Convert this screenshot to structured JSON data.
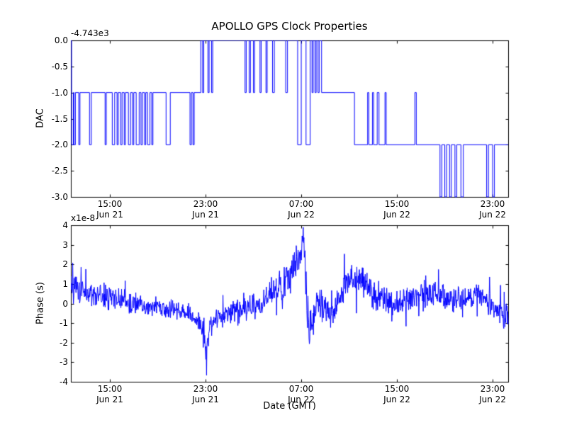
{
  "figure": {
    "title": "APOLLO GPS Clock Properties",
    "background": "#ffffff",
    "line_color": "#0000ff"
  },
  "chart_data": [
    {
      "type": "line",
      "name": "dac-subplot",
      "title": "APOLLO GPS Clock Properties",
      "ylabel": "DAC",
      "y_offset_label": "-4.743e3",
      "drawstyle": "steps-post",
      "grid": false,
      "legend": "none",
      "xlim": [
        11.74,
        48.3
      ],
      "ylim": [
        -3.0,
        0.0
      ],
      "x_unit": "hours since Jun 21 00:00 GMT",
      "yticks": [
        {
          "value": 0.0,
          "label": "0.0"
        },
        {
          "value": -0.5,
          "label": "-0.5"
        },
        {
          "value": -1.0,
          "label": "-1.0"
        },
        {
          "value": -1.5,
          "label": "-1.5"
        },
        {
          "value": -2.0,
          "label": "-2.0"
        },
        {
          "value": -2.5,
          "label": "-2.5"
        },
        {
          "value": -3.0,
          "label": "-3.0"
        }
      ],
      "xticks": [
        {
          "value": 15,
          "time": "15:00",
          "date": "Jun 21"
        },
        {
          "value": 23,
          "time": "23:00",
          "date": "Jun 21"
        },
        {
          "value": 31,
          "time": "07:00",
          "date": "Jun 22"
        },
        {
          "value": 39,
          "time": "15:00",
          "date": "Jun 22"
        },
        {
          "value": 47,
          "time": "23:00",
          "date": "Jun 22"
        }
      ],
      "steps": [
        [
          11.74,
          0
        ],
        [
          11.8,
          -2
        ],
        [
          11.95,
          -1
        ],
        [
          12.0,
          -2
        ],
        [
          12.12,
          -1
        ],
        [
          12.4,
          -2
        ],
        [
          12.5,
          -1
        ],
        [
          13.3,
          -2
        ],
        [
          13.45,
          -1
        ],
        [
          14.6,
          -2
        ],
        [
          14.7,
          -1
        ],
        [
          15.2,
          -2
        ],
        [
          15.4,
          -1
        ],
        [
          15.6,
          -2
        ],
        [
          15.7,
          -1
        ],
        [
          15.9,
          -2
        ],
        [
          16.02,
          -1
        ],
        [
          16.2,
          -2
        ],
        [
          16.3,
          -1
        ],
        [
          16.55,
          -2
        ],
        [
          16.73,
          -1
        ],
        [
          16.9,
          -2
        ],
        [
          17.0,
          -1
        ],
        [
          17.2,
          -2
        ],
        [
          17.45,
          -1
        ],
        [
          17.6,
          -2
        ],
        [
          17.72,
          -1
        ],
        [
          17.9,
          -2
        ],
        [
          18.0,
          -1
        ],
        [
          18.15,
          -2
        ],
        [
          18.35,
          -1
        ],
        [
          18.5,
          -2
        ],
        [
          18.6,
          -1
        ],
        [
          19.7,
          -2
        ],
        [
          20.05,
          -1
        ],
        [
          21.7,
          -2
        ],
        [
          21.82,
          -1
        ],
        [
          21.95,
          -2
        ],
        [
          22.05,
          -1
        ],
        [
          22.6,
          0
        ],
        [
          22.75,
          -1
        ],
        [
          22.85,
          0
        ],
        [
          23.2,
          -1
        ],
        [
          23.3,
          0
        ],
        [
          23.5,
          -1
        ],
        [
          23.6,
          0
        ],
        [
          26.3,
          -1
        ],
        [
          26.4,
          0
        ],
        [
          26.65,
          -1
        ],
        [
          26.75,
          0
        ],
        [
          27.0,
          -1
        ],
        [
          27.1,
          0
        ],
        [
          27.55,
          -1
        ],
        [
          27.65,
          0
        ],
        [
          28.05,
          -1
        ],
        [
          28.15,
          0
        ],
        [
          28.6,
          -1
        ],
        [
          28.75,
          0
        ],
        [
          29.7,
          -1
        ],
        [
          29.85,
          0
        ],
        [
          30.7,
          -2
        ],
        [
          31.0,
          0
        ],
        [
          31.4,
          -2
        ],
        [
          31.75,
          0
        ],
        [
          31.9,
          -1
        ],
        [
          32.0,
          0
        ],
        [
          32.15,
          -1
        ],
        [
          32.25,
          0
        ],
        [
          32.4,
          -1
        ],
        [
          32.5,
          0
        ],
        [
          32.7,
          -1
        ],
        [
          35.45,
          -2
        ],
        [
          36.55,
          -1
        ],
        [
          36.65,
          -2
        ],
        [
          36.95,
          -1
        ],
        [
          37.05,
          -2
        ],
        [
          37.35,
          -1
        ],
        [
          37.5,
          -2
        ],
        [
          38.0,
          -1
        ],
        [
          38.1,
          -2
        ],
        [
          40.5,
          -1
        ],
        [
          40.62,
          -2
        ],
        [
          42.6,
          -3
        ],
        [
          42.75,
          -2
        ],
        [
          43.0,
          -3
        ],
        [
          43.15,
          -2
        ],
        [
          43.4,
          -3
        ],
        [
          43.55,
          -2
        ],
        [
          43.85,
          -3
        ],
        [
          44.0,
          -2
        ],
        [
          44.35,
          -3
        ],
        [
          44.55,
          -2
        ],
        [
          46.5,
          -3
        ],
        [
          46.65,
          -2
        ],
        [
          47.0,
          -3
        ],
        [
          47.15,
          -2
        ],
        [
          48.3,
          -2
        ]
      ]
    },
    {
      "type": "line",
      "name": "phase-subplot",
      "ylabel": "Phase (s)",
      "y_offset_label": "x1e-8",
      "xlabel": "Date (GMT)",
      "grid": false,
      "legend": "none",
      "xlim": [
        11.74,
        48.3
      ],
      "ylim": [
        -4,
        4
      ],
      "y_unit": "1e-8 s",
      "x_unit": "hours since Jun 21 00:00 GMT",
      "yticks": [
        {
          "value": 4,
          "label": "4"
        },
        {
          "value": 3,
          "label": "3"
        },
        {
          "value": 2,
          "label": "2"
        },
        {
          "value": 1,
          "label": "1"
        },
        {
          "value": 0,
          "label": "0"
        },
        {
          "value": -1,
          "label": "-1"
        },
        {
          "value": -2,
          "label": "-2"
        },
        {
          "value": -3,
          "label": "-3"
        },
        {
          "value": -4,
          "label": "-4"
        }
      ],
      "xticks": [
        {
          "value": 15,
          "time": "15:00",
          "date": "Jun 21"
        },
        {
          "value": 23,
          "time": "23:00",
          "date": "Jun 21"
        },
        {
          "value": 31,
          "time": "07:00",
          "date": "Jun 22"
        },
        {
          "value": 39,
          "time": "15:00",
          "date": "Jun 22"
        },
        {
          "value": 47,
          "time": "23:00",
          "date": "Jun 22"
        }
      ],
      "samples": 1200,
      "trend": [
        [
          11.74,
          0.9,
          0.9
        ],
        [
          12.3,
          0.7,
          1.0
        ],
        [
          13.0,
          0.5,
          0.8
        ],
        [
          14.0,
          0.35,
          0.7
        ],
        [
          15.0,
          0.3,
          0.8
        ],
        [
          16.0,
          0.2,
          0.7
        ],
        [
          17.0,
          0.05,
          0.7
        ],
        [
          18.0,
          -0.1,
          0.6
        ],
        [
          19.0,
          -0.2,
          0.6
        ],
        [
          20.0,
          -0.25,
          0.55
        ],
        [
          21.0,
          -0.4,
          0.6
        ],
        [
          22.0,
          -0.6,
          0.7
        ],
        [
          22.7,
          -1.1,
          0.8
        ],
        [
          23.05,
          -2.5,
          0.7
        ],
        [
          23.35,
          -1.3,
          0.8
        ],
        [
          23.8,
          -0.8,
          0.7
        ],
        [
          24.5,
          -0.6,
          0.7
        ],
        [
          25.5,
          -0.45,
          0.8
        ],
        [
          26.5,
          -0.3,
          0.8
        ],
        [
          27.5,
          -0.1,
          0.8
        ],
        [
          28.5,
          0.4,
          0.9
        ],
        [
          29.3,
          1.0,
          1.0
        ],
        [
          30.0,
          1.5,
          1.1
        ],
        [
          30.6,
          2.0,
          1.2
        ],
        [
          31.0,
          2.6,
          1.0
        ],
        [
          31.18,
          3.9,
          0.8
        ],
        [
          31.35,
          1.0,
          1.6
        ],
        [
          31.55,
          -1.6,
          1.2
        ],
        [
          31.8,
          -1.0,
          1.2
        ],
        [
          32.2,
          -0.4,
          1.0
        ],
        [
          32.8,
          -0.3,
          0.9
        ],
        [
          33.5,
          -0.6,
          0.8
        ],
        [
          34.2,
          0.2,
          0.9
        ],
        [
          34.9,
          1.1,
          1.0
        ],
        [
          35.6,
          1.4,
          1.0
        ],
        [
          36.3,
          1.0,
          0.9
        ],
        [
          37.0,
          0.4,
          0.8
        ],
        [
          38.0,
          0.2,
          0.8
        ],
        [
          39.0,
          0.0,
          0.8
        ],
        [
          40.0,
          0.25,
          0.7
        ],
        [
          41.0,
          0.45,
          0.9
        ],
        [
          42.0,
          0.55,
          0.9
        ],
        [
          43.0,
          0.3,
          0.8
        ],
        [
          44.0,
          0.2,
          0.75
        ],
        [
          45.0,
          0.3,
          0.8
        ],
        [
          45.8,
          0.5,
          0.8
        ],
        [
          46.5,
          0.05,
          0.7
        ],
        [
          47.3,
          -0.3,
          0.7
        ],
        [
          47.9,
          -0.6,
          0.8
        ],
        [
          48.3,
          -1.0,
          0.9
        ]
      ]
    }
  ]
}
